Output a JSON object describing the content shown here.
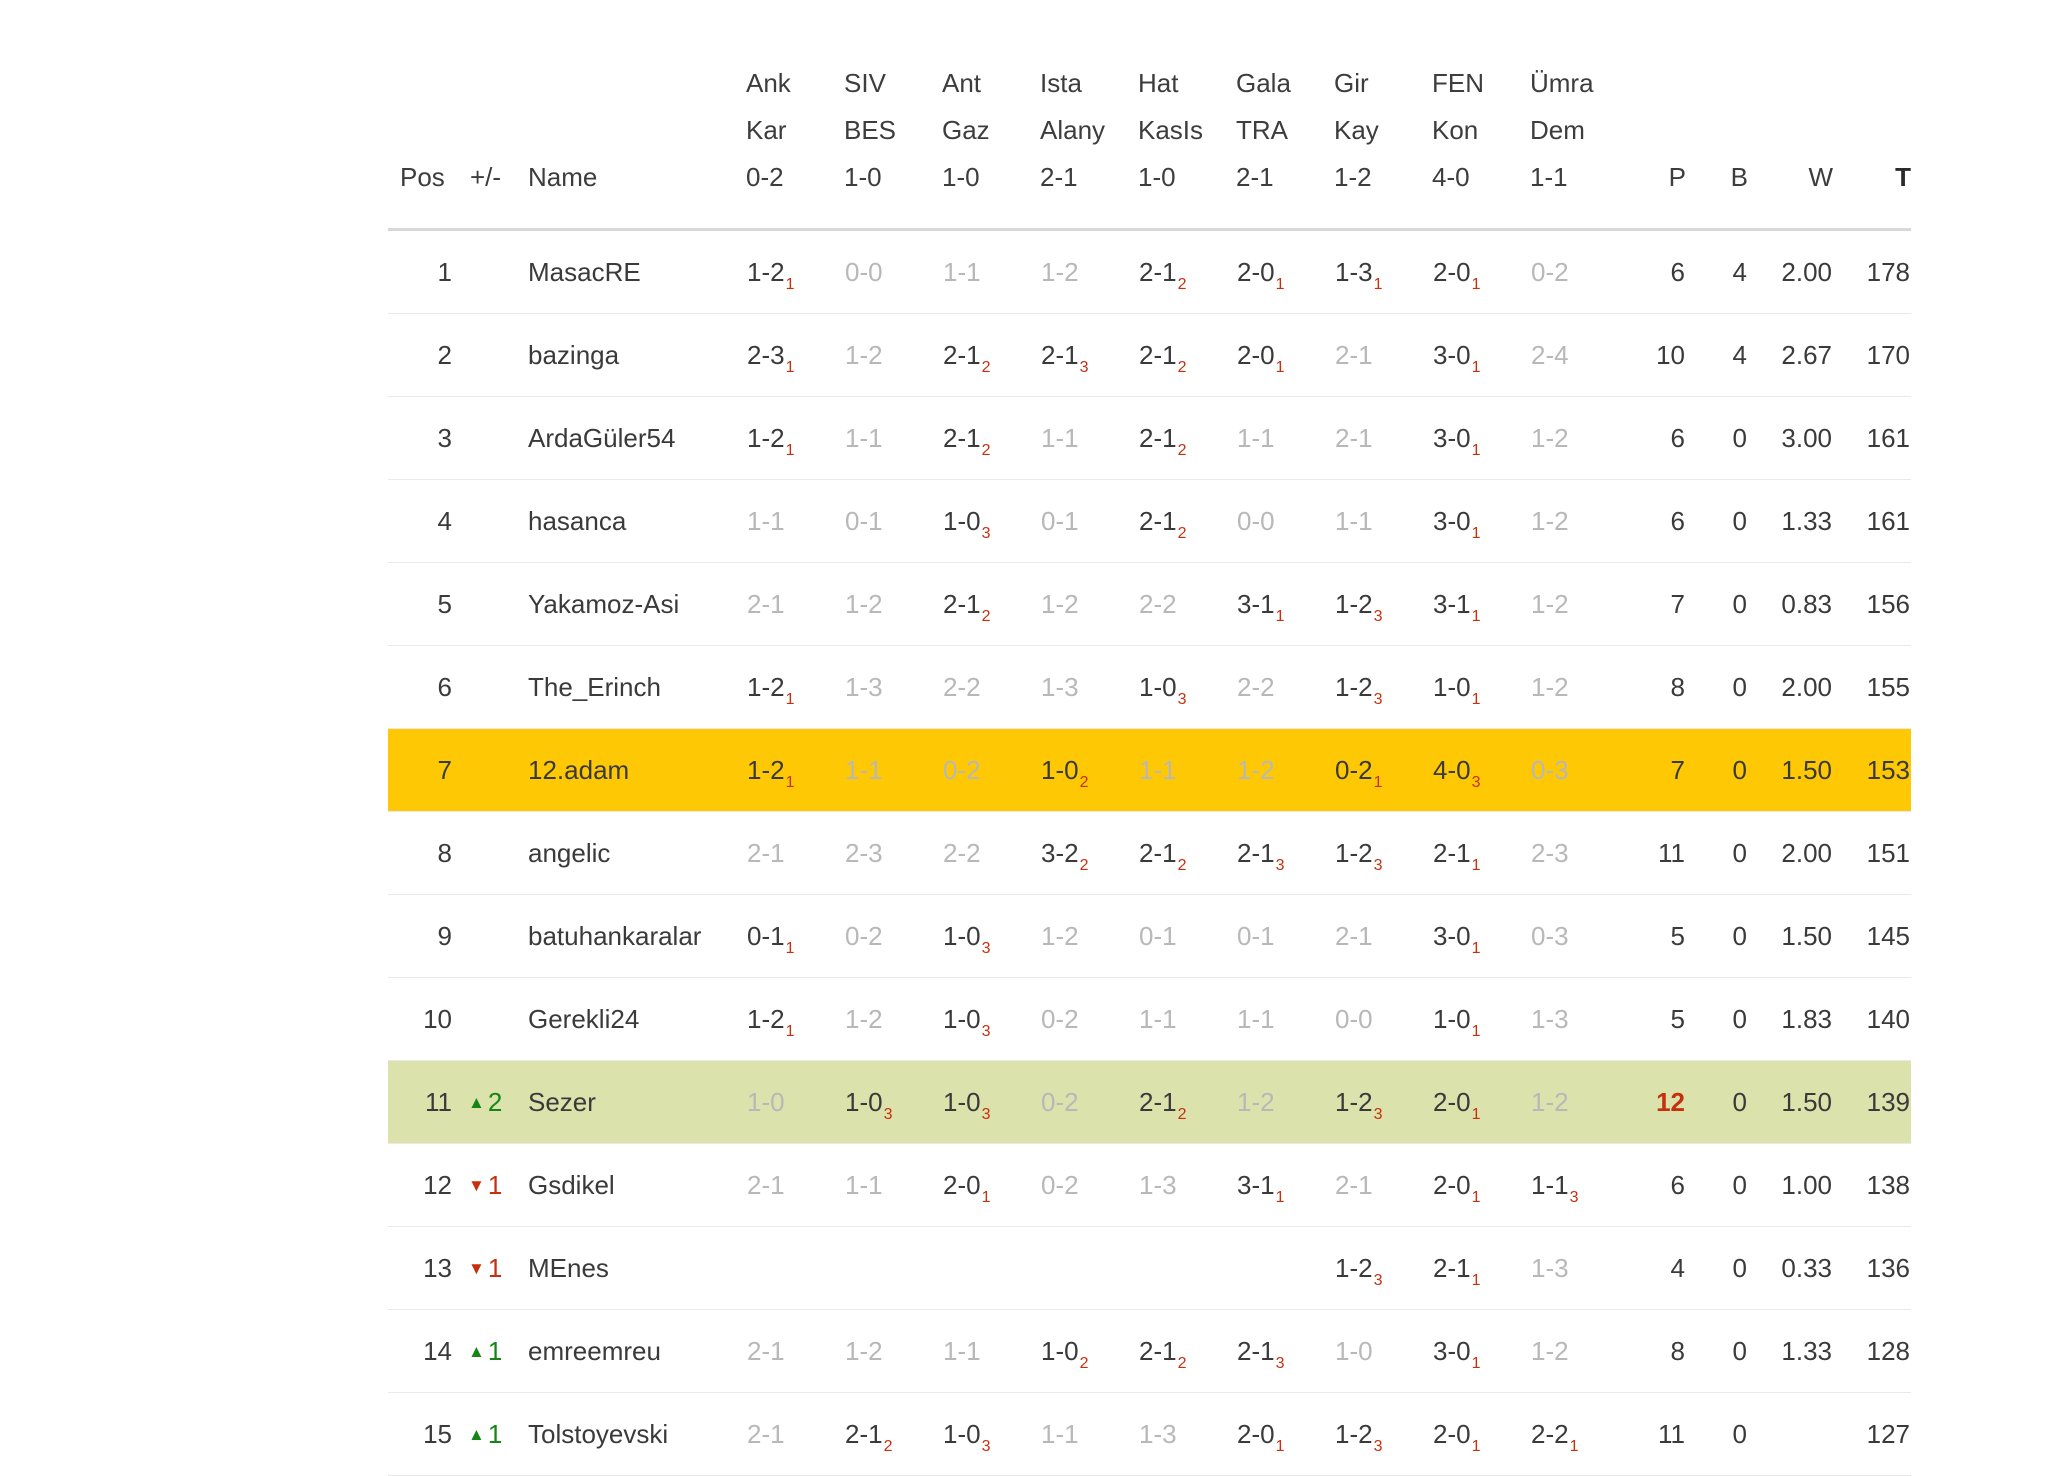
{
  "colors": {
    "highlight_yellow": "#fec904",
    "highlight_green": "#dbe2ac",
    "score_red": "#c5310f",
    "up_green": "#168516",
    "muted_gray": "#b8b8b8",
    "text_dark": "#3a3a3a",
    "row_line": "#e9e9e9",
    "header_line": "#d8d8d8"
  },
  "icons": {
    "up_arrow": "▲",
    "down_arrow": "▼"
  },
  "table": {
    "headers": {
      "pos": "Pos",
      "delta": "+/-",
      "name": "Name",
      "p": "P",
      "b": "B",
      "w": "W",
      "t": "T"
    },
    "matches": [
      {
        "home": "Ank",
        "away": "Kar",
        "score": "0-2"
      },
      {
        "home": "SIV",
        "away": "BES",
        "score": "1-0"
      },
      {
        "home": "Ant",
        "away": "Gaz",
        "score": "1-0"
      },
      {
        "home": "Ista",
        "away": "Alany",
        "score": "2-1"
      },
      {
        "home": "Hat",
        "away": "KasIs",
        "score": "1-0"
      },
      {
        "home": "Gala",
        "away": "TRA",
        "score": "2-1"
      },
      {
        "home": "Gir",
        "away": "Kay",
        "score": "1-2"
      },
      {
        "home": "FEN",
        "away": "Kon",
        "score": "4-0"
      },
      {
        "home": "Ümra",
        "away": "Dem",
        "score": "1-1"
      }
    ],
    "rows": [
      {
        "pos": "1",
        "delta": "",
        "delta_dir": "",
        "name": "MasacRE",
        "highlight": "",
        "p_hot": false,
        "predictions": [
          {
            "s": "1-2",
            "pts": "1"
          },
          {
            "s": "0-0",
            "pts": ""
          },
          {
            "s": "1-1",
            "pts": ""
          },
          {
            "s": "1-2",
            "pts": ""
          },
          {
            "s": "2-1",
            "pts": "2"
          },
          {
            "s": "2-0",
            "pts": "1"
          },
          {
            "s": "1-3",
            "pts": "1"
          },
          {
            "s": "2-0",
            "pts": "1"
          },
          {
            "s": "0-2",
            "pts": ""
          }
        ],
        "p": "6",
        "b": "4",
        "w": "2.00",
        "t": "178"
      },
      {
        "pos": "2",
        "delta": "",
        "delta_dir": "",
        "name": "bazinga",
        "highlight": "",
        "p_hot": false,
        "predictions": [
          {
            "s": "2-3",
            "pts": "1"
          },
          {
            "s": "1-2",
            "pts": ""
          },
          {
            "s": "2-1",
            "pts": "2"
          },
          {
            "s": "2-1",
            "pts": "3"
          },
          {
            "s": "2-1",
            "pts": "2"
          },
          {
            "s": "2-0",
            "pts": "1"
          },
          {
            "s": "2-1",
            "pts": ""
          },
          {
            "s": "3-0",
            "pts": "1"
          },
          {
            "s": "2-4",
            "pts": ""
          }
        ],
        "p": "10",
        "b": "4",
        "w": "2.67",
        "t": "170"
      },
      {
        "pos": "3",
        "delta": "",
        "delta_dir": "",
        "name": "ArdaGüler54",
        "highlight": "",
        "p_hot": false,
        "predictions": [
          {
            "s": "1-2",
            "pts": "1"
          },
          {
            "s": "1-1",
            "pts": ""
          },
          {
            "s": "2-1",
            "pts": "2"
          },
          {
            "s": "1-1",
            "pts": ""
          },
          {
            "s": "2-1",
            "pts": "2"
          },
          {
            "s": "1-1",
            "pts": ""
          },
          {
            "s": "2-1",
            "pts": ""
          },
          {
            "s": "3-0",
            "pts": "1"
          },
          {
            "s": "1-2",
            "pts": ""
          }
        ],
        "p": "6",
        "b": "0",
        "w": "3.00",
        "t": "161"
      },
      {
        "pos": "4",
        "delta": "",
        "delta_dir": "",
        "name": "hasanca",
        "highlight": "",
        "p_hot": false,
        "predictions": [
          {
            "s": "1-1",
            "pts": ""
          },
          {
            "s": "0-1",
            "pts": ""
          },
          {
            "s": "1-0",
            "pts": "3"
          },
          {
            "s": "0-1",
            "pts": ""
          },
          {
            "s": "2-1",
            "pts": "2"
          },
          {
            "s": "0-0",
            "pts": ""
          },
          {
            "s": "1-1",
            "pts": ""
          },
          {
            "s": "3-0",
            "pts": "1"
          },
          {
            "s": "1-2",
            "pts": ""
          }
        ],
        "p": "6",
        "b": "0",
        "w": "1.33",
        "t": "161"
      },
      {
        "pos": "5",
        "delta": "",
        "delta_dir": "",
        "name": "Yakamoz-Asi",
        "highlight": "",
        "p_hot": false,
        "predictions": [
          {
            "s": "2-1",
            "pts": ""
          },
          {
            "s": "1-2",
            "pts": ""
          },
          {
            "s": "2-1",
            "pts": "2"
          },
          {
            "s": "1-2",
            "pts": ""
          },
          {
            "s": "2-2",
            "pts": ""
          },
          {
            "s": "3-1",
            "pts": "1"
          },
          {
            "s": "1-2",
            "pts": "3"
          },
          {
            "s": "3-1",
            "pts": "1"
          },
          {
            "s": "1-2",
            "pts": ""
          }
        ],
        "p": "7",
        "b": "0",
        "w": "0.83",
        "t": "156"
      },
      {
        "pos": "6",
        "delta": "",
        "delta_dir": "",
        "name": "The_Erinch",
        "highlight": "",
        "p_hot": false,
        "predictions": [
          {
            "s": "1-2",
            "pts": "1"
          },
          {
            "s": "1-3",
            "pts": ""
          },
          {
            "s": "2-2",
            "pts": ""
          },
          {
            "s": "1-3",
            "pts": ""
          },
          {
            "s": "1-0",
            "pts": "3"
          },
          {
            "s": "2-2",
            "pts": ""
          },
          {
            "s": "1-2",
            "pts": "3"
          },
          {
            "s": "1-0",
            "pts": "1"
          },
          {
            "s": "1-2",
            "pts": ""
          }
        ],
        "p": "8",
        "b": "0",
        "w": "2.00",
        "t": "155"
      },
      {
        "pos": "7",
        "delta": "",
        "delta_dir": "",
        "name": "12.adam",
        "highlight": "yellow",
        "p_hot": false,
        "predictions": [
          {
            "s": "1-2",
            "pts": "1"
          },
          {
            "s": "1-1",
            "pts": ""
          },
          {
            "s": "0-2",
            "pts": ""
          },
          {
            "s": "1-0",
            "pts": "2"
          },
          {
            "s": "1-1",
            "pts": ""
          },
          {
            "s": "1-2",
            "pts": ""
          },
          {
            "s": "0-2",
            "pts": "1"
          },
          {
            "s": "4-0",
            "pts": "3"
          },
          {
            "s": "0-3",
            "pts": ""
          }
        ],
        "p": "7",
        "b": "0",
        "w": "1.50",
        "t": "153"
      },
      {
        "pos": "8",
        "delta": "",
        "delta_dir": "",
        "name": "angelic",
        "highlight": "",
        "p_hot": false,
        "predictions": [
          {
            "s": "2-1",
            "pts": ""
          },
          {
            "s": "2-3",
            "pts": ""
          },
          {
            "s": "2-2",
            "pts": ""
          },
          {
            "s": "3-2",
            "pts": "2"
          },
          {
            "s": "2-1",
            "pts": "2"
          },
          {
            "s": "2-1",
            "pts": "3"
          },
          {
            "s": "1-2",
            "pts": "3"
          },
          {
            "s": "2-1",
            "pts": "1"
          },
          {
            "s": "2-3",
            "pts": ""
          }
        ],
        "p": "11",
        "b": "0",
        "w": "2.00",
        "t": "151"
      },
      {
        "pos": "9",
        "delta": "",
        "delta_dir": "",
        "name": "batuhankaralar",
        "highlight": "",
        "p_hot": false,
        "predictions": [
          {
            "s": "0-1",
            "pts": "1"
          },
          {
            "s": "0-2",
            "pts": ""
          },
          {
            "s": "1-0",
            "pts": "3"
          },
          {
            "s": "1-2",
            "pts": ""
          },
          {
            "s": "0-1",
            "pts": ""
          },
          {
            "s": "0-1",
            "pts": ""
          },
          {
            "s": "2-1",
            "pts": ""
          },
          {
            "s": "3-0",
            "pts": "1"
          },
          {
            "s": "0-3",
            "pts": ""
          }
        ],
        "p": "5",
        "b": "0",
        "w": "1.50",
        "t": "145"
      },
      {
        "pos": "10",
        "delta": "",
        "delta_dir": "",
        "name": "Gerekli24",
        "highlight": "",
        "p_hot": false,
        "predictions": [
          {
            "s": "1-2",
            "pts": "1"
          },
          {
            "s": "1-2",
            "pts": ""
          },
          {
            "s": "1-0",
            "pts": "3"
          },
          {
            "s": "0-2",
            "pts": ""
          },
          {
            "s": "1-1",
            "pts": ""
          },
          {
            "s": "1-1",
            "pts": ""
          },
          {
            "s": "0-0",
            "pts": ""
          },
          {
            "s": "1-0",
            "pts": "1"
          },
          {
            "s": "1-3",
            "pts": ""
          }
        ],
        "p": "5",
        "b": "0",
        "w": "1.83",
        "t": "140"
      },
      {
        "pos": "11",
        "delta": "2",
        "delta_dir": "up",
        "name": "Sezer",
        "highlight": "green",
        "p_hot": true,
        "predictions": [
          {
            "s": "1-0",
            "pts": ""
          },
          {
            "s": "1-0",
            "pts": "3"
          },
          {
            "s": "1-0",
            "pts": "3"
          },
          {
            "s": "0-2",
            "pts": ""
          },
          {
            "s": "2-1",
            "pts": "2"
          },
          {
            "s": "1-2",
            "pts": ""
          },
          {
            "s": "1-2",
            "pts": "3"
          },
          {
            "s": "2-0",
            "pts": "1"
          },
          {
            "s": "1-2",
            "pts": ""
          }
        ],
        "p": "12",
        "b": "0",
        "w": "1.50",
        "t": "139"
      },
      {
        "pos": "12",
        "delta": "1",
        "delta_dir": "down",
        "name": "Gsdikel",
        "highlight": "",
        "p_hot": false,
        "predictions": [
          {
            "s": "2-1",
            "pts": ""
          },
          {
            "s": "1-1",
            "pts": ""
          },
          {
            "s": "2-0",
            "pts": "1"
          },
          {
            "s": "0-2",
            "pts": ""
          },
          {
            "s": "1-3",
            "pts": ""
          },
          {
            "s": "3-1",
            "pts": "1"
          },
          {
            "s": "2-1",
            "pts": ""
          },
          {
            "s": "2-0",
            "pts": "1"
          },
          {
            "s": "1-1",
            "pts": "3"
          }
        ],
        "p": "6",
        "b": "0",
        "w": "1.00",
        "t": "138"
      },
      {
        "pos": "13",
        "delta": "1",
        "delta_dir": "down",
        "name": "MEnes",
        "highlight": "",
        "p_hot": false,
        "predictions": [
          {
            "s": "",
            "pts": ""
          },
          {
            "s": "",
            "pts": ""
          },
          {
            "s": "",
            "pts": ""
          },
          {
            "s": "",
            "pts": ""
          },
          {
            "s": "",
            "pts": ""
          },
          {
            "s": "",
            "pts": ""
          },
          {
            "s": "1-2",
            "pts": "3"
          },
          {
            "s": "2-1",
            "pts": "1"
          },
          {
            "s": "1-3",
            "pts": ""
          }
        ],
        "p": "4",
        "b": "0",
        "w": "0.33",
        "t": "136"
      },
      {
        "pos": "14",
        "delta": "1",
        "delta_dir": "up",
        "name": "emreemreu",
        "highlight": "",
        "p_hot": false,
        "predictions": [
          {
            "s": "2-1",
            "pts": ""
          },
          {
            "s": "1-2",
            "pts": ""
          },
          {
            "s": "1-1",
            "pts": ""
          },
          {
            "s": "1-0",
            "pts": "2"
          },
          {
            "s": "2-1",
            "pts": "2"
          },
          {
            "s": "2-1",
            "pts": "3"
          },
          {
            "s": "1-0",
            "pts": ""
          },
          {
            "s": "3-0",
            "pts": "1"
          },
          {
            "s": "1-2",
            "pts": ""
          }
        ],
        "p": "8",
        "b": "0",
        "w": "1.33",
        "t": "128"
      },
      {
        "pos": "15",
        "delta": "1",
        "delta_dir": "up",
        "name": "Tolstoyevski",
        "highlight": "",
        "p_hot": false,
        "predictions": [
          {
            "s": "2-1",
            "pts": ""
          },
          {
            "s": "2-1",
            "pts": "2"
          },
          {
            "s": "1-0",
            "pts": "3"
          },
          {
            "s": "1-1",
            "pts": ""
          },
          {
            "s": "1-3",
            "pts": ""
          },
          {
            "s": "2-0",
            "pts": "1"
          },
          {
            "s": "1-2",
            "pts": "3"
          },
          {
            "s": "2-0",
            "pts": "1"
          },
          {
            "s": "2-2",
            "pts": "1"
          }
        ],
        "p": "11",
        "b": "0",
        "w": "",
        "t": "127"
      }
    ]
  }
}
